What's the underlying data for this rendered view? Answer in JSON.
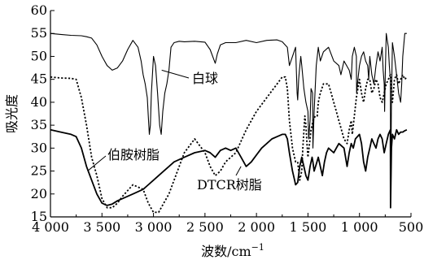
{
  "chart_data": {
    "type": "line",
    "title": "",
    "xlabel": "波数/cm",
    "xlabel_superscript": "−1",
    "ylabel": "吸光度",
    "xlim": [
      4000,
      500
    ],
    "ylim": [
      15,
      60
    ],
    "x_axis_reversed": true,
    "grid": false,
    "legend": "none",
    "x_ticks": [
      4000,
      3500,
      3000,
      2500,
      2000,
      1500,
      1000,
      500
    ],
    "x_tick_labels": [
      "4 000",
      "3 500",
      "3 000",
      "2 500",
      "2 000",
      "1 500",
      "1 000",
      "500"
    ],
    "y_ticks": [
      15,
      20,
      25,
      30,
      35,
      40,
      45,
      50,
      55,
      60
    ],
    "y_tick_labels": [
      "15",
      "20",
      "25",
      "30",
      "35",
      "40",
      "45",
      "50",
      "55",
      "60"
    ],
    "annotations": [
      {
        "text": "白球",
        "points_to": [
          2920,
          47
        ]
      },
      {
        "text": "伯胺树脂",
        "points_to": [
          3640,
          25
        ]
      },
      {
        "text": "DTCR树脂",
        "points_to": [
          2150,
          26
        ]
      }
    ],
    "series": [
      {
        "name": "白球",
        "style": "solid",
        "color": "#000000",
        "x": [
          4000,
          3900,
          3800,
          3700,
          3650,
          3600,
          3550,
          3500,
          3450,
          3400,
          3350,
          3300,
          3250,
          3200,
          3150,
          3120,
          3100,
          3080,
          3060,
          3050,
          3040,
          3030,
          3020,
          3000,
          2980,
          2960,
          2940,
          2925,
          2910,
          2890,
          2870,
          2850,
          2830,
          2800,
          2750,
          2700,
          2600,
          2500,
          2450,
          2400,
          2380,
          2350,
          2300,
          2200,
          2100,
          2000,
          1900,
          1800,
          1750,
          1700,
          1680,
          1650,
          1620,
          1605,
          1600,
          1590,
          1583,
          1570,
          1560,
          1540,
          1520,
          1500,
          1493,
          1480,
          1470,
          1455,
          1452,
          1440,
          1420,
          1400,
          1380,
          1350,
          1300,
          1250,
          1200,
          1180,
          1150,
          1100,
          1080,
          1070,
          1050,
          1030,
          1028,
          1020,
          1000,
          980,
          960,
          940,
          920,
          910,
          900,
          880,
          860,
          840,
          820,
          800,
          780,
          770,
          760,
          756,
          750,
          740,
          720,
          710,
          700,
          698,
          690,
          680,
          660,
          640,
          620,
          600,
          590,
          580,
          560,
          540
        ],
        "y": [
          55,
          54.8,
          54.6,
          54.5,
          54.3,
          54,
          52.5,
          50,
          48,
          47,
          47.5,
          49,
          51.5,
          53.5,
          52,
          49,
          46,
          44,
          41,
          37,
          33,
          35,
          42,
          50,
          48,
          42,
          35,
          33,
          38,
          42,
          44,
          47,
          52,
          53,
          53.3,
          53.2,
          53.3,
          53.1,
          51.5,
          48.5,
          50.5,
          52.5,
          53,
          53,
          53.5,
          53,
          53.5,
          53.6,
          53.2,
          52,
          48,
          50,
          52,
          42,
          40.5,
          45,
          47,
          50,
          48,
          43,
          40,
          38,
          32,
          36,
          43,
          42,
          30,
          38,
          48,
          52,
          49,
          51,
          52,
          49,
          48,
          46,
          49,
          47,
          45,
          50,
          52,
          50,
          42,
          44,
          48,
          50,
          51,
          49,
          48,
          45,
          50,
          46,
          44,
          48,
          51,
          49,
          52,
          47,
          44,
          38,
          46,
          55,
          52,
          48,
          45,
          18,
          40,
          53,
          50,
          46,
          42,
          40,
          44,
          50,
          55,
          55
        ]
      },
      {
        "name": "伯胺树脂",
        "style": "dotted",
        "color": "#000000",
        "x": [
          4000,
          3900,
          3800,
          3750,
          3700,
          3650,
          3600,
          3550,
          3500,
          3450,
          3400,
          3350,
          3300,
          3200,
          3100,
          3050,
          3000,
          2950,
          2900,
          2850,
          2800,
          2700,
          2600,
          2500,
          2450,
          2400,
          2350,
          2300,
          2200,
          2100,
          2000,
          1900,
          1800,
          1750,
          1720,
          1700,
          1680,
          1650,
          1620,
          1600,
          1580,
          1560,
          1550,
          1530,
          1520,
          1510,
          1500,
          1490,
          1470,
          1450,
          1430,
          1410,
          1400,
          1380,
          1350,
          1300,
          1250,
          1200,
          1150,
          1120,
          1100,
          1080,
          1070,
          1050,
          1030,
          1000,
          980,
          960,
          940,
          920,
          900,
          880,
          860,
          840,
          820,
          800,
          780,
          760,
          740,
          720,
          700,
          690,
          680,
          660,
          640,
          620,
          600,
          580,
          560,
          540
        ],
        "y": [
          45.5,
          45.3,
          45.2,
          45,
          41,
          35,
          28,
          24,
          19,
          17,
          17,
          18,
          19.5,
          22,
          21,
          18,
          16,
          16,
          18,
          20,
          23,
          29,
          32,
          29,
          26,
          24,
          25,
          27,
          29,
          34,
          38,
          41,
          44,
          45.5,
          45.5,
          43,
          36,
          30,
          27,
          27,
          23,
          25,
          30,
          37,
          35,
          31,
          28,
          30,
          34,
          36,
          37,
          37,
          40,
          42,
          44,
          44,
          40,
          36,
          32,
          31,
          34,
          36,
          33,
          37,
          41,
          45,
          42,
          40,
          43,
          45,
          45,
          42,
          43,
          45,
          44,
          41,
          40,
          42,
          44,
          45,
          46,
          43,
          40,
          45,
          46,
          44,
          45,
          46,
          45,
          45.5
        ]
      },
      {
        "name": "DTCR树脂",
        "style": "solid-thick",
        "color": "#000000",
        "x": [
          4000,
          3900,
          3800,
          3750,
          3700,
          3650,
          3600,
          3550,
          3500,
          3450,
          3400,
          3350,
          3300,
          3200,
          3100,
          3050,
          3000,
          2950,
          2900,
          2850,
          2800,
          2700,
          2600,
          2500,
          2450,
          2400,
          2350,
          2300,
          2250,
          2200,
          2150,
          2100,
          2050,
          2000,
          1950,
          1900,
          1850,
          1800,
          1750,
          1720,
          1700,
          1680,
          1650,
          1630,
          1620,
          1600,
          1580,
          1560,
          1540,
          1520,
          1500,
          1493,
          1480,
          1460,
          1452,
          1440,
          1420,
          1400,
          1380,
          1360,
          1340,
          1320,
          1300,
          1250,
          1200,
          1150,
          1120,
          1100,
          1080,
          1060,
          1040,
          1000,
          980,
          960,
          940,
          920,
          900,
          880,
          860,
          840,
          820,
          800,
          780,
          760,
          740,
          720,
          700,
          698,
          690,
          680,
          660,
          640,
          620,
          600,
          580,
          560,
          540
        ],
        "y": [
          34,
          33.5,
          33,
          32.5,
          30,
          26,
          23,
          20,
          18,
          17.5,
          17.8,
          18.5,
          19,
          20,
          21,
          22,
          23,
          24,
          25,
          26,
          27,
          28,
          29,
          29.5,
          29,
          28,
          29.5,
          30,
          29.5,
          30,
          28,
          26,
          27,
          28.5,
          30,
          31,
          32,
          32.5,
          33,
          33,
          32,
          29,
          25,
          23,
          22,
          22.5,
          26,
          28,
          26,
          24,
          23,
          24,
          26,
          28,
          27,
          25,
          26.5,
          28,
          26,
          24,
          27,
          29,
          30,
          29,
          31,
          30,
          26,
          29,
          31,
          30,
          32,
          33,
          31,
          27,
          25,
          28,
          30,
          32,
          31,
          30,
          32,
          33,
          32,
          29,
          31,
          33,
          34,
          17,
          30,
          33,
          32,
          34,
          33,
          33.5,
          33.5,
          33.8,
          34
        ]
      }
    ]
  }
}
